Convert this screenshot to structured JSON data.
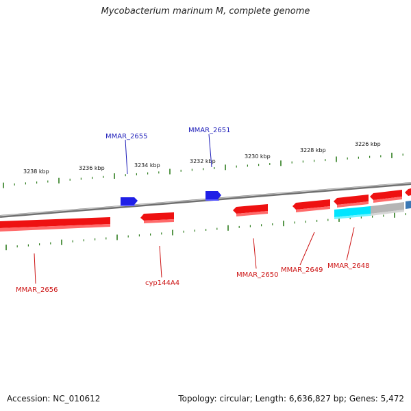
{
  "title": "Mycobacterium marinum M, complete genome",
  "footer": {
    "accession": "Accession: NC_010612",
    "summary": "Topology: circular; Length: 6,636,827 bp; Genes: 5,472"
  },
  "colors": {
    "forward_gene": "#1f1fe6",
    "reverse_gene": "#ee1111",
    "selected_gene": "#00e5ff",
    "gray_feature": "#b5b5b5",
    "backbone": "#7a7a7a",
    "ticks": "#2e7d1e"
  },
  "scale_labels": [
    "3238 kbp",
    "3236 kbp",
    "3234 kbp",
    "3232 kbp",
    "3230 kbp",
    "3228 kbp",
    "3226 kbp"
  ],
  "forward_gene_labels": [
    "MMAR_2655",
    "MMAR_2651"
  ],
  "reverse_gene_labels": [
    "MMAR_2656",
    "cyp144A4",
    "MMAR_2650",
    "MMAR_2649",
    "MMAR_2648"
  ]
}
